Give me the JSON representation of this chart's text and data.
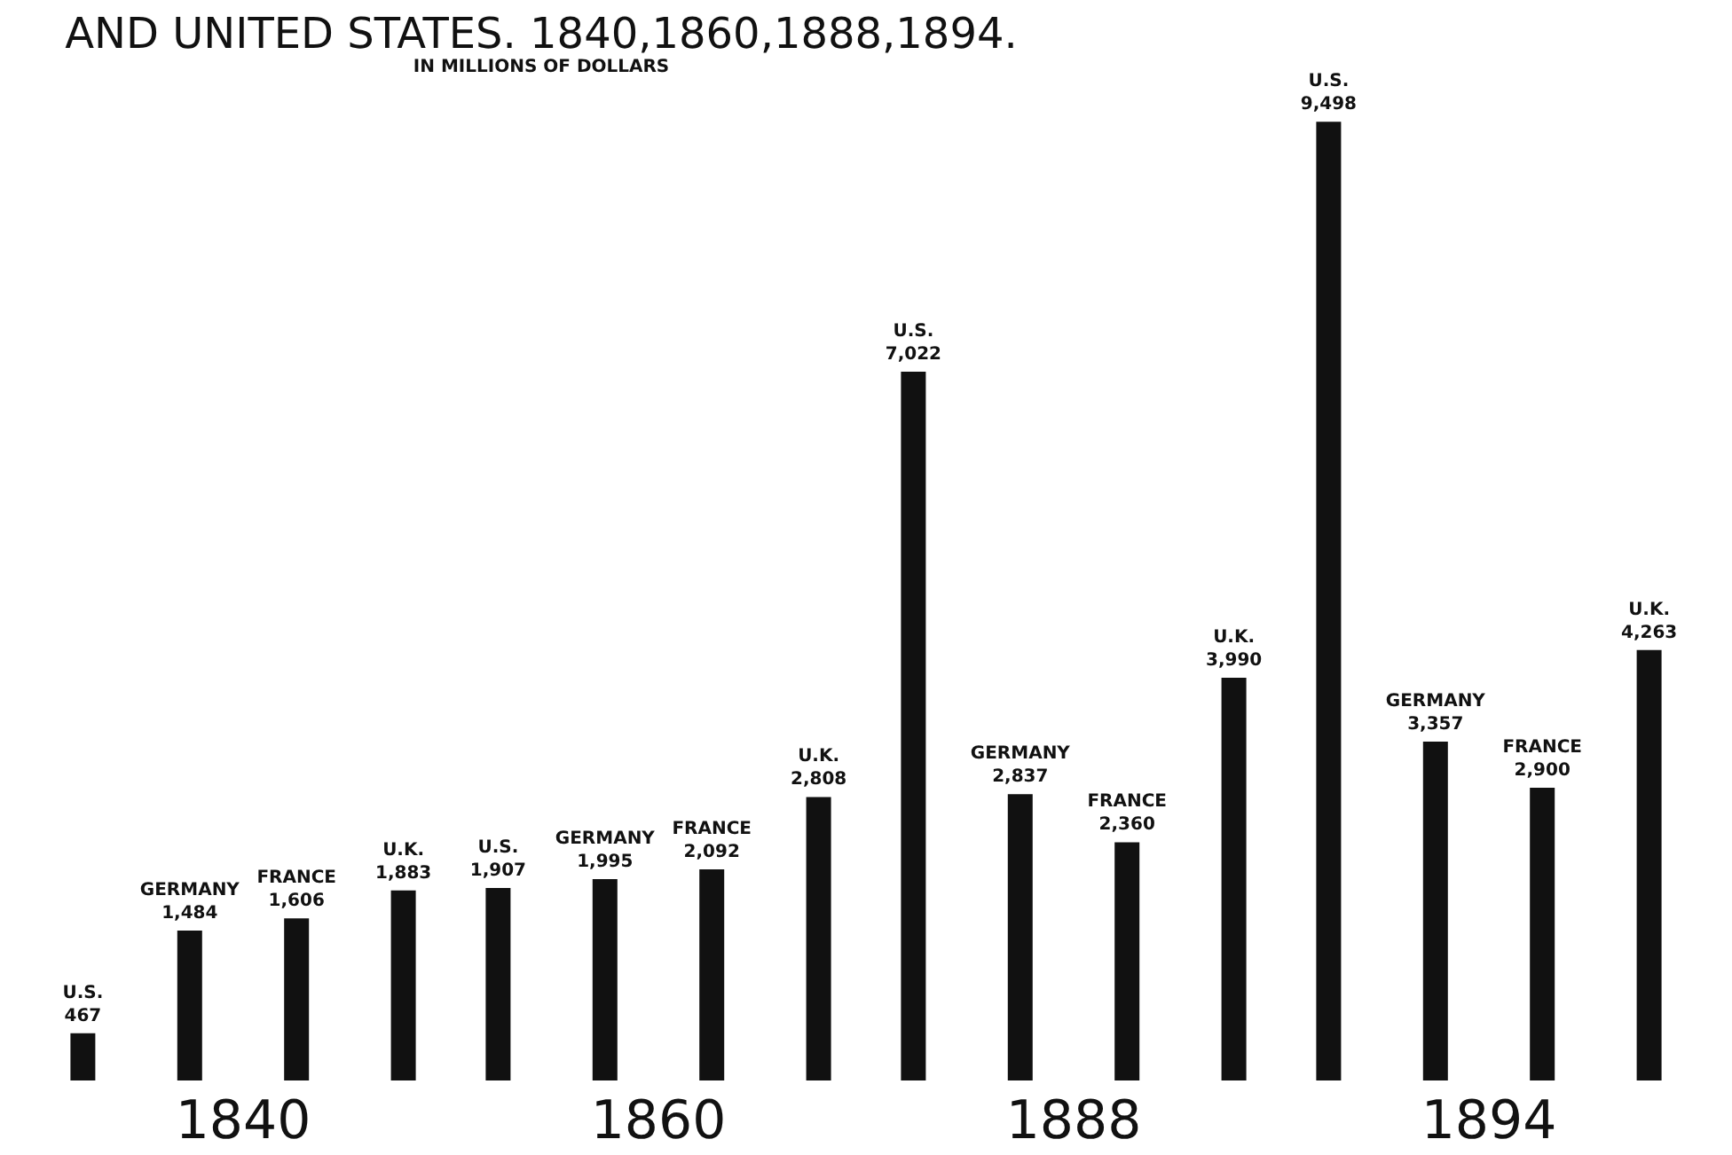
{
  "chart_data": {
    "type": "bar",
    "title": "AND UNITED STATES. 1840,1860,1888,1894.",
    "subtitle": "IN MILLIONS OF DOLLARS",
    "categories": [
      "1840",
      "1860",
      "1888",
      "1894"
    ],
    "series": [
      {
        "name": "U.S.",
        "color": "#111111",
        "values": [
          467,
          1907,
          7022,
          9498
        ],
        "value_labels": [
          "467",
          "1,907",
          "7,022",
          "9,498"
        ]
      },
      {
        "name": "GERMANY",
        "color": "#111111",
        "values": [
          1484,
          1995,
          2837,
          3357
        ],
        "value_labels": [
          "1,484",
          "1,995",
          "2,837",
          "3,357"
        ]
      },
      {
        "name": "FRANCE",
        "color": "#111111",
        "values": [
          1606,
          2092,
          2360,
          2900
        ],
        "value_labels": [
          "1,606",
          "2,092",
          "2,360",
          "2,900"
        ]
      },
      {
        "name": "U.K.",
        "color": "#111111",
        "values": [
          1883,
          2808,
          3990,
          4263
        ],
        "value_labels": [
          "1,883",
          "2,808",
          "3,990",
          "4,263"
        ]
      }
    ],
    "legend": false,
    "grid": false
  }
}
